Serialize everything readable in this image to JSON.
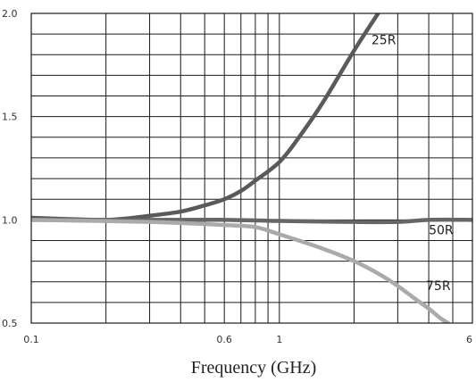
{
  "chart_data": {
    "type": "line",
    "title": "",
    "xlabel": "Frequency (GHz)",
    "ylabel": "",
    "x_scale": "log",
    "xlim": [
      0.1,
      6
    ],
    "ylim": [
      0.5,
      2.0
    ],
    "grid": true,
    "x_ticks": [
      {
        "value": 0.1,
        "label": "0.1"
      },
      {
        "value": 0.6,
        "label": "0.6"
      },
      {
        "value": 1,
        "label": "1"
      },
      {
        "value": 6,
        "label": "6"
      }
    ],
    "y_ticks": [
      {
        "value": 2.0,
        "label": "2.0"
      },
      {
        "value": 1.5,
        "label": "1.5"
      },
      {
        "value": 1.0,
        "label": "1.0"
      },
      {
        "value": 0.5,
        "label": "0.5"
      }
    ],
    "series": [
      {
        "name": "25R",
        "color": "#5a5a5a",
        "points": [
          [
            0.1,
            1.01
          ],
          [
            0.2,
            1.0
          ],
          [
            0.3,
            1.02
          ],
          [
            0.4,
            1.04
          ],
          [
            0.5,
            1.07
          ],
          [
            0.6,
            1.1
          ],
          [
            0.7,
            1.14
          ],
          [
            0.8,
            1.19
          ],
          [
            1.0,
            1.28
          ],
          [
            1.2,
            1.4
          ],
          [
            1.5,
            1.57
          ],
          [
            2.0,
            1.82
          ],
          [
            2.5,
            2.0
          ]
        ]
      },
      {
        "name": "50R",
        "color": "#666666",
        "points": [
          [
            0.1,
            1.0
          ],
          [
            0.3,
            1.0
          ],
          [
            0.6,
            1.0
          ],
          [
            1.0,
            0.995
          ],
          [
            2.0,
            0.99
          ],
          [
            3.0,
            0.99
          ],
          [
            4.0,
            1.0
          ],
          [
            6.0,
            1.0
          ]
        ]
      },
      {
        "name": "75R",
        "color": "#aaaaaa",
        "points": [
          [
            0.1,
            1.0
          ],
          [
            0.3,
            0.99
          ],
          [
            0.6,
            0.975
          ],
          [
            0.8,
            0.965
          ],
          [
            1.0,
            0.93
          ],
          [
            1.5,
            0.86
          ],
          [
            2.0,
            0.8
          ],
          [
            2.5,
            0.74
          ],
          [
            3.0,
            0.68
          ],
          [
            3.5,
            0.62
          ],
          [
            4.0,
            0.57
          ],
          [
            4.5,
            0.52
          ],
          [
            4.8,
            0.5
          ]
        ]
      }
    ]
  }
}
